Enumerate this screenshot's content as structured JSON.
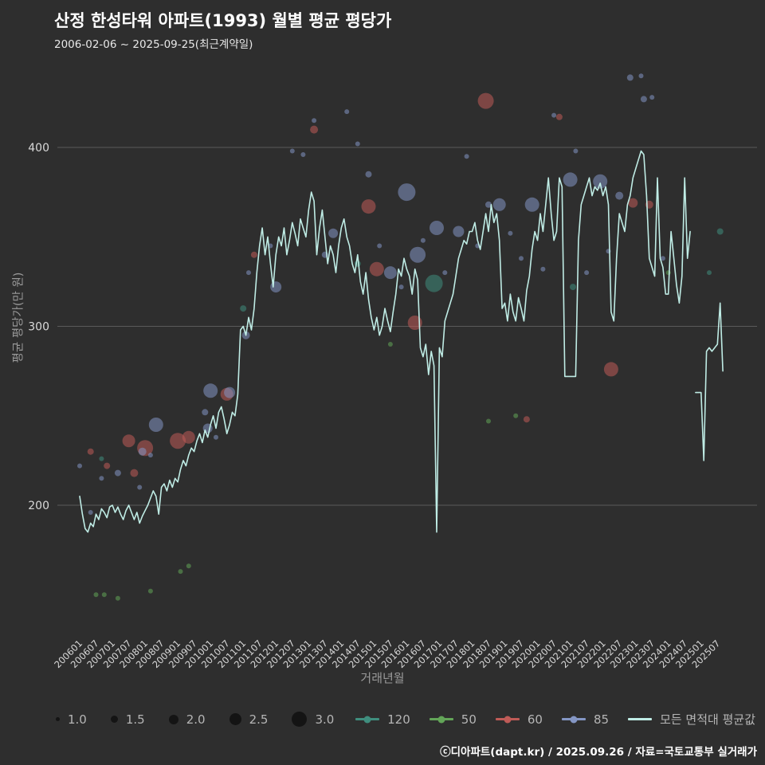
{
  "title": "산정 한성타워 아파트(1993) 월별 평균 평당가",
  "subtitle": "2006-02-06 ~ 2025-09-25(최근계약일)",
  "footer": "ⓒ디아파트(dapt.kr) / 2025.09.26 / 자료=국토교통부 실거래가",
  "colors": {
    "background": "#2e2e2e",
    "gridline": "#5a5a5a",
    "tick_text": "#d9d9d9",
    "axis_title_text": "#9a9a9a",
    "legend_text": "#b5b5b5",
    "area_120": "#3f8e7e",
    "area_50": "#63a558",
    "area_60": "#bf5b57",
    "area_85": "#8496c4",
    "average_line": "#bfece5"
  },
  "chart_data": {
    "type": "line",
    "title": "산정 한성타워 아파트(1993) 월별 평균 평당가",
    "xlabel": "거래년월",
    "ylabel": "평균 평당가(만 원)",
    "y_ticks": [
      400,
      300,
      200
    ],
    "ylim": [
      140,
      460
    ],
    "xlim": [
      "200601",
      "202509"
    ],
    "grid": "horizontal",
    "legend_position": "bottom",
    "x_ticks": [
      "200601",
      "200607",
      "200701",
      "200707",
      "200801",
      "200807",
      "200901",
      "200907",
      "201001",
      "201007",
      "201101",
      "201107",
      "201201",
      "201207",
      "201301",
      "201307",
      "201401",
      "201407",
      "201501",
      "201507",
      "201601",
      "201607",
      "201701",
      "201707",
      "201801",
      "201807",
      "201901",
      "201907",
      "202001",
      "202007",
      "202101",
      "202107",
      "202201",
      "202207",
      "202301",
      "202307",
      "202401",
      "202407",
      "202501",
      "202507"
    ],
    "line": {
      "name": "모든 면적대 평균값",
      "color": "#bfece5",
      "start": "200601",
      "values": [
        205,
        195,
        187,
        185,
        190,
        188,
        195,
        192,
        198,
        196,
        193,
        199,
        200,
        196,
        199,
        195,
        192,
        197,
        200,
        196,
        192,
        196,
        190,
        194,
        197,
        200,
        204,
        208,
        205,
        195,
        210,
        212,
        208,
        214,
        210,
        215,
        213,
        220,
        225,
        222,
        228,
        232,
        230,
        236,
        240,
        235,
        242,
        238,
        245,
        250,
        243,
        252,
        255,
        248,
        240,
        245,
        252,
        250,
        262,
        298,
        300,
        295,
        305,
        298,
        310,
        330,
        345,
        355,
        340,
        350,
        335,
        322,
        340,
        350,
        345,
        355,
        340,
        348,
        358,
        352,
        345,
        360,
        355,
        350,
        365,
        375,
        370,
        340,
        355,
        365,
        350,
        335,
        345,
        340,
        330,
        345,
        355,
        360,
        350,
        345,
        335,
        330,
        340,
        325,
        318,
        330,
        315,
        305,
        298,
        305,
        295,
        300,
        310,
        303,
        297,
        308,
        318,
        332,
        328,
        338,
        332,
        328,
        318,
        332,
        326,
        288,
        283,
        290,
        273,
        286,
        278,
        185,
        288,
        283,
        303,
        308,
        313,
        318,
        328,
        338,
        343,
        348,
        346,
        353,
        353,
        358,
        348,
        343,
        353,
        363,
        353,
        368,
        358,
        363,
        348,
        310,
        313,
        303,
        318,
        308,
        303,
        316,
        310,
        303,
        320,
        328,
        343,
        353,
        348,
        363,
        353,
        368,
        383,
        363,
        348,
        353,
        383,
        378,
        272,
        272,
        272,
        272,
        272,
        348,
        368,
        373,
        378,
        383,
        373,
        378,
        376,
        380,
        373,
        378,
        368,
        308,
        303,
        338,
        363,
        358,
        353,
        368,
        373,
        383,
        388,
        393,
        398,
        396,
        373,
        338,
        333,
        328,
        383,
        338,
        333,
        318,
        318,
        353,
        338,
        323,
        313,
        328,
        383,
        338,
        353,
        null,
        263,
        263,
        263,
        225,
        286,
        288,
        286,
        288,
        290,
        313,
        275
      ]
    },
    "bubble_series": [
      {
        "name": "120",
        "color": "#3f8e7e",
        "points": [
          [
            "200609",
            226,
            3
          ],
          [
            "201101",
            310,
            4
          ],
          [
            "201407",
            335,
            4
          ],
          [
            "201611",
            324,
            11
          ],
          [
            "202102",
            322,
            4
          ],
          [
            "202504",
            330,
            3
          ],
          [
            "202508",
            353,
            4
          ]
        ]
      },
      {
        "name": "50",
        "color": "#63a558",
        "points": [
          [
            "200607",
            150,
            3
          ],
          [
            "200610",
            150,
            3
          ],
          [
            "200703",
            148,
            3
          ],
          [
            "200803",
            152,
            3
          ],
          [
            "200902",
            163,
            3
          ],
          [
            "200905",
            166,
            3
          ],
          [
            "201507",
            290,
            3
          ],
          [
            "201807",
            247,
            3
          ],
          [
            "201905",
            250,
            3
          ],
          [
            "202401",
            330,
            3
          ]
        ]
      },
      {
        "name": "60",
        "color": "#bf5b57",
        "points": [
          [
            "200605",
            230,
            4
          ],
          [
            "200611",
            222,
            4
          ],
          [
            "200707",
            236,
            8
          ],
          [
            "200709",
            218,
            5
          ],
          [
            "200801",
            232,
            10
          ],
          [
            "200901",
            236,
            10
          ],
          [
            "200905",
            238,
            8
          ],
          [
            "201007",
            262,
            8
          ],
          [
            "201105",
            340,
            4
          ],
          [
            "201303",
            410,
            5
          ],
          [
            "201411",
            367,
            9
          ],
          [
            "201502",
            332,
            9
          ],
          [
            "201604",
            302,
            9
          ],
          [
            "201806",
            426,
            10
          ],
          [
            "201909",
            248,
            4
          ],
          [
            "202009",
            417,
            4
          ],
          [
            "202204",
            276,
            9
          ],
          [
            "202212",
            369,
            6
          ],
          [
            "202306",
            368,
            5
          ]
        ]
      },
      {
        "name": "85",
        "color": "#8496c4",
        "points": [
          [
            "200601",
            222,
            3
          ],
          [
            "200605",
            196,
            3
          ],
          [
            "200609",
            215,
            3
          ],
          [
            "200703",
            218,
            4
          ],
          [
            "200711",
            210,
            3
          ],
          [
            "200712",
            230,
            5
          ],
          [
            "200803",
            228,
            3
          ],
          [
            "200805",
            245,
            9
          ],
          [
            "200911",
            252,
            4
          ],
          [
            "200912",
            243,
            6
          ],
          [
            "201001",
            264,
            9
          ],
          [
            "201003",
            238,
            3
          ],
          [
            "201008",
            263,
            7
          ],
          [
            "201102",
            295,
            5
          ],
          [
            "201103",
            330,
            3
          ],
          [
            "201111",
            345,
            3
          ],
          [
            "201201",
            322,
            7
          ],
          [
            "201207",
            398,
            3
          ],
          [
            "201211",
            396,
            3
          ],
          [
            "201303",
            415,
            3
          ],
          [
            "201307",
            340,
            4
          ],
          [
            "201310",
            352,
            6
          ],
          [
            "201403",
            420,
            3
          ],
          [
            "201407",
            402,
            3
          ],
          [
            "201411",
            385,
            4
          ],
          [
            "201503",
            345,
            3
          ],
          [
            "201507",
            330,
            8
          ],
          [
            "201511",
            322,
            3
          ],
          [
            "201601",
            375,
            11
          ],
          [
            "201605",
            340,
            10
          ],
          [
            "201607",
            348,
            3
          ],
          [
            "201612",
            355,
            9
          ],
          [
            "201703",
            330,
            3
          ],
          [
            "201708",
            353,
            7
          ],
          [
            "201711",
            395,
            3
          ],
          [
            "201803",
            345,
            3
          ],
          [
            "201807",
            368,
            4
          ],
          [
            "201811",
            368,
            8
          ],
          [
            "201903",
            352,
            3
          ],
          [
            "201907",
            338,
            3
          ],
          [
            "201911",
            368,
            9
          ],
          [
            "202003",
            332,
            3
          ],
          [
            "202007",
            418,
            3
          ],
          [
            "202101",
            382,
            9
          ],
          [
            "202103",
            398,
            3
          ],
          [
            "202107",
            330,
            3
          ],
          [
            "202112",
            381,
            9
          ],
          [
            "202203",
            342,
            3
          ],
          [
            "202207",
            373,
            5
          ],
          [
            "202211",
            439,
            4
          ],
          [
            "202303",
            440,
            3
          ],
          [
            "202304",
            427,
            4
          ],
          [
            "202307",
            428,
            3
          ],
          [
            "202311",
            338,
            3
          ]
        ]
      }
    ]
  },
  "legend": {
    "sizes": [
      {
        "label": "1.0",
        "d": 5
      },
      {
        "label": "1.5",
        "d": 9
      },
      {
        "label": "2.0",
        "d": 12
      },
      {
        "label": "2.5",
        "d": 15
      },
      {
        "label": "3.0",
        "d": 19
      }
    ],
    "areas": [
      {
        "label": "120",
        "color": "#3f8e7e"
      },
      {
        "label": "50",
        "color": "#63a558"
      },
      {
        "label": "60",
        "color": "#bf5b57"
      },
      {
        "label": "85",
        "color": "#8496c4"
      }
    ],
    "avg": {
      "label": "모든 면적대 평균값",
      "color": "#bfece5"
    }
  }
}
